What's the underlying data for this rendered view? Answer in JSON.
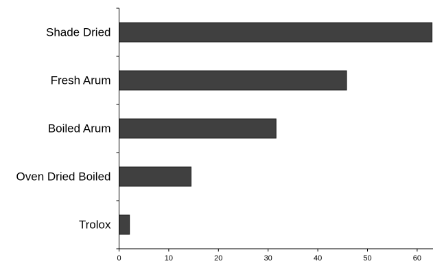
{
  "chart_data": {
    "type": "bar",
    "orientation": "horizontal",
    "categories": [
      "Shade Dried",
      "Fresh Arum",
      "Boiled Arum",
      "Oven Dried Boiled",
      "Trolox"
    ],
    "values": [
      63,
      45.8,
      31.6,
      14.5,
      2.1
    ],
    "xlim": [
      0,
      63
    ],
    "xticks": [
      "0",
      "10",
      "20",
      "30",
      "40",
      "50",
      "60"
    ],
    "title": "",
    "xlabel": "",
    "ylabel": "",
    "grid": false,
    "bar_color": "#404040"
  }
}
